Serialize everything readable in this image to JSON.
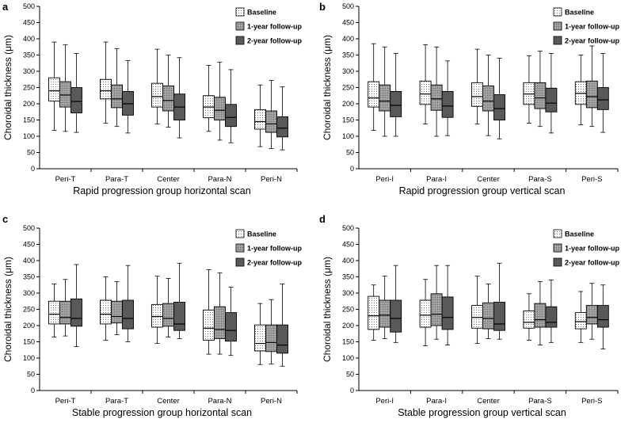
{
  "chart_data": [
    {
      "type": "box",
      "panel": "a",
      "title": "Rapid progression group horizontal scan",
      "xlabel": "Rapid progression group horizontal scan",
      "ylabel": "Choroidal thickness (μm)",
      "ylim": [
        0,
        500
      ],
      "yticks": [
        0,
        50,
        100,
        150,
        200,
        250,
        300,
        350,
        400,
        450,
        500
      ],
      "categories": [
        "Peri-T",
        "Para-T",
        "Center",
        "Para-N",
        "Peri-N"
      ],
      "legend": [
        "Baseline",
        "1-year follow-up",
        "2-year follow-up"
      ],
      "series": [
        {
          "name": "Baseline",
          "boxes": [
            {
              "min": 118,
              "q1": 208,
              "median": 240,
              "q3": 280,
              "max": 390
            },
            {
              "min": 140,
              "q1": 215,
              "median": 240,
              "q3": 275,
              "max": 390
            },
            {
              "min": 138,
              "q1": 190,
              "median": 222,
              "q3": 263,
              "max": 368
            },
            {
              "min": 115,
              "q1": 157,
              "median": 190,
              "q3": 225,
              "max": 318
            },
            {
              "min": 68,
              "q1": 122,
              "median": 145,
              "q3": 182,
              "max": 258
            }
          ]
        },
        {
          "name": "1-year follow-up",
          "boxes": [
            {
              "min": 115,
              "q1": 190,
              "median": 227,
              "q3": 268,
              "max": 382
            },
            {
              "min": 130,
              "q1": 188,
              "median": 215,
              "q3": 258,
              "max": 370
            },
            {
              "min": 128,
              "q1": 178,
              "median": 210,
              "q3": 255,
              "max": 350
            },
            {
              "min": 88,
              "q1": 150,
              "median": 180,
              "q3": 220,
              "max": 328
            },
            {
              "min": 62,
              "q1": 112,
              "median": 138,
              "q3": 178,
              "max": 272
            }
          ]
        },
        {
          "name": "2-year follow-up",
          "boxes": [
            {
              "min": 112,
              "q1": 172,
              "median": 207,
              "q3": 250,
              "max": 355
            },
            {
              "min": 110,
              "q1": 165,
              "median": 200,
              "q3": 238,
              "max": 333
            },
            {
              "min": 95,
              "q1": 150,
              "median": 190,
              "q3": 230,
              "max": 342
            },
            {
              "min": 80,
              "q1": 130,
              "median": 158,
              "q3": 198,
              "max": 305
            },
            {
              "min": 58,
              "q1": 98,
              "median": 125,
              "q3": 160,
              "max": 252
            }
          ]
        }
      ]
    },
    {
      "type": "box",
      "panel": "b",
      "title": "Rapid progression group vertical scan",
      "xlabel": "Rapid progression group vertical scan",
      "ylabel": "Choroidal thickness (μm)",
      "ylim": [
        0,
        500
      ],
      "yticks": [
        0,
        50,
        100,
        150,
        200,
        250,
        300,
        350,
        400,
        450,
        500
      ],
      "categories": [
        "Peri-I",
        "Para-I",
        "Center",
        "Para-S",
        "Peri-S"
      ],
      "legend": [
        "Baseline",
        "1-year follow-up",
        "2-year follow-up"
      ],
      "series": [
        {
          "name": "Baseline",
          "boxes": [
            {
              "min": 118,
              "q1": 190,
              "median": 218,
              "q3": 268,
              "max": 385
            },
            {
              "min": 138,
              "q1": 198,
              "median": 230,
              "q3": 270,
              "max": 382
            },
            {
              "min": 138,
              "q1": 192,
              "median": 222,
              "q3": 265,
              "max": 368
            },
            {
              "min": 140,
              "q1": 198,
              "median": 230,
              "q3": 265,
              "max": 348
            },
            {
              "min": 135,
              "q1": 198,
              "median": 232,
              "q3": 268,
              "max": 350
            }
          ]
        },
        {
          "name": "1-year follow-up",
          "boxes": [
            {
              "min": 100,
              "q1": 178,
              "median": 208,
              "q3": 258,
              "max": 375
            },
            {
              "min": 100,
              "q1": 180,
              "median": 215,
              "q3": 258,
              "max": 375
            },
            {
              "min": 102,
              "q1": 178,
              "median": 208,
              "q3": 255,
              "max": 350
            },
            {
              "min": 130,
              "q1": 185,
              "median": 218,
              "q3": 265,
              "max": 362
            },
            {
              "min": 130,
              "q1": 188,
              "median": 222,
              "q3": 270,
              "max": 378
            }
          ]
        },
        {
          "name": "2-year follow-up",
          "boxes": [
            {
              "min": 100,
              "q1": 160,
              "median": 195,
              "q3": 238,
              "max": 355
            },
            {
              "min": 102,
              "q1": 158,
              "median": 193,
              "q3": 238,
              "max": 332
            },
            {
              "min": 92,
              "q1": 150,
              "median": 185,
              "q3": 228,
              "max": 340
            },
            {
              "min": 110,
              "q1": 175,
              "median": 202,
              "q3": 248,
              "max": 355
            },
            {
              "min": 112,
              "q1": 182,
              "median": 212,
              "q3": 250,
              "max": 355
            }
          ]
        }
      ]
    },
    {
      "type": "box",
      "panel": "c",
      "title": "Stable progression group horizontal scan",
      "xlabel": "Stable progression group horizontal scan",
      "ylabel": "Choroidal thickness (μm)",
      "ylim": [
        0,
        500
      ],
      "yticks": [
        0,
        50,
        100,
        150,
        200,
        250,
        300,
        350,
        400,
        450,
        500
      ],
      "categories": [
        "Peri-T",
        "Para-T",
        "Center",
        "Para-N",
        "Peri-N"
      ],
      "legend": [
        "Baseline",
        "1-year follow-up",
        "2-year follow-up"
      ],
      "series": [
        {
          "name": "Baseline",
          "boxes": [
            {
              "min": 165,
              "q1": 205,
              "median": 235,
              "q3": 275,
              "max": 328
            },
            {
              "min": 155,
              "q1": 205,
              "median": 235,
              "q3": 278,
              "max": 350
            },
            {
              "min": 145,
              "q1": 195,
              "median": 228,
              "q3": 265,
              "max": 352
            },
            {
              "min": 112,
              "q1": 155,
              "median": 192,
              "q3": 248,
              "max": 372
            },
            {
              "min": 80,
              "q1": 122,
              "median": 145,
              "q3": 202,
              "max": 268
            }
          ]
        },
        {
          "name": "1-year follow-up",
          "boxes": [
            {
              "min": 168,
              "q1": 205,
              "median": 225,
              "q3": 275,
              "max": 342
            },
            {
              "min": 172,
              "q1": 208,
              "median": 228,
              "q3": 275,
              "max": 335
            },
            {
              "min": 165,
              "q1": 198,
              "median": 222,
              "q3": 268,
              "max": 345
            },
            {
              "min": 112,
              "q1": 160,
              "median": 188,
              "q3": 258,
              "max": 362
            },
            {
              "min": 82,
              "q1": 120,
              "median": 148,
              "q3": 202,
              "max": 280
            }
          ]
        },
        {
          "name": "2-year follow-up",
          "boxes": [
            {
              "min": 135,
              "q1": 198,
              "median": 222,
              "q3": 282,
              "max": 388
            },
            {
              "min": 150,
              "q1": 190,
              "median": 222,
              "q3": 278,
              "max": 385
            },
            {
              "min": 160,
              "q1": 185,
              "median": 205,
              "q3": 272,
              "max": 392
            },
            {
              "min": 108,
              "q1": 152,
              "median": 185,
              "q3": 240,
              "max": 318
            },
            {
              "min": 75,
              "q1": 115,
              "median": 140,
              "q3": 202,
              "max": 328
            }
          ]
        }
      ]
    },
    {
      "type": "box",
      "panel": "d",
      "title": "Stable progression group vertical scan",
      "xlabel": "Stable progression group vertical scan",
      "ylabel": "Choroidal thickness (μm)",
      "ylim": [
        0,
        500
      ],
      "yticks": [
        0,
        50,
        100,
        150,
        200,
        250,
        300,
        350,
        400,
        450,
        500
      ],
      "categories": [
        "Peri-I",
        "Para-I",
        "Center",
        "Para-S",
        "Peri-S"
      ],
      "legend": [
        "Baseline",
        "1-year follow-up",
        "2-year follow-up"
      ],
      "series": [
        {
          "name": "Baseline",
          "boxes": [
            {
              "min": 155,
              "q1": 188,
              "median": 230,
              "q3": 290,
              "max": 325
            },
            {
              "min": 138,
              "q1": 195,
              "median": 232,
              "q3": 278,
              "max": 342
            },
            {
              "min": 145,
              "q1": 192,
              "median": 225,
              "q3": 262,
              "max": 352
            },
            {
              "min": 155,
              "q1": 192,
              "median": 210,
              "q3": 245,
              "max": 298
            },
            {
              "min": 148,
              "q1": 190,
              "median": 212,
              "q3": 240,
              "max": 305
            }
          ]
        },
        {
          "name": "1-year follow-up",
          "boxes": [
            {
              "min": 160,
              "q1": 195,
              "median": 232,
              "q3": 278,
              "max": 352
            },
            {
              "min": 158,
              "q1": 200,
              "median": 235,
              "q3": 298,
              "max": 385
            },
            {
              "min": 160,
              "q1": 190,
              "median": 222,
              "q3": 270,
              "max": 328
            },
            {
              "min": 140,
              "q1": 195,
              "median": 218,
              "q3": 268,
              "max": 335
            },
            {
              "min": 158,
              "q1": 205,
              "median": 225,
              "q3": 262,
              "max": 330
            }
          ]
        },
        {
          "name": "2-year follow-up",
          "boxes": [
            {
              "min": 148,
              "q1": 180,
              "median": 222,
              "q3": 278,
              "max": 385
            },
            {
              "min": 140,
              "q1": 188,
              "median": 225,
              "q3": 288,
              "max": 385
            },
            {
              "min": 158,
              "q1": 185,
              "median": 205,
              "q3": 272,
              "max": 392
            },
            {
              "min": 148,
              "q1": 195,
              "median": 210,
              "q3": 258,
              "max": 340
            },
            {
              "min": 128,
              "q1": 195,
              "median": 218,
              "q3": 262,
              "max": 325
            }
          ]
        }
      ]
    }
  ]
}
